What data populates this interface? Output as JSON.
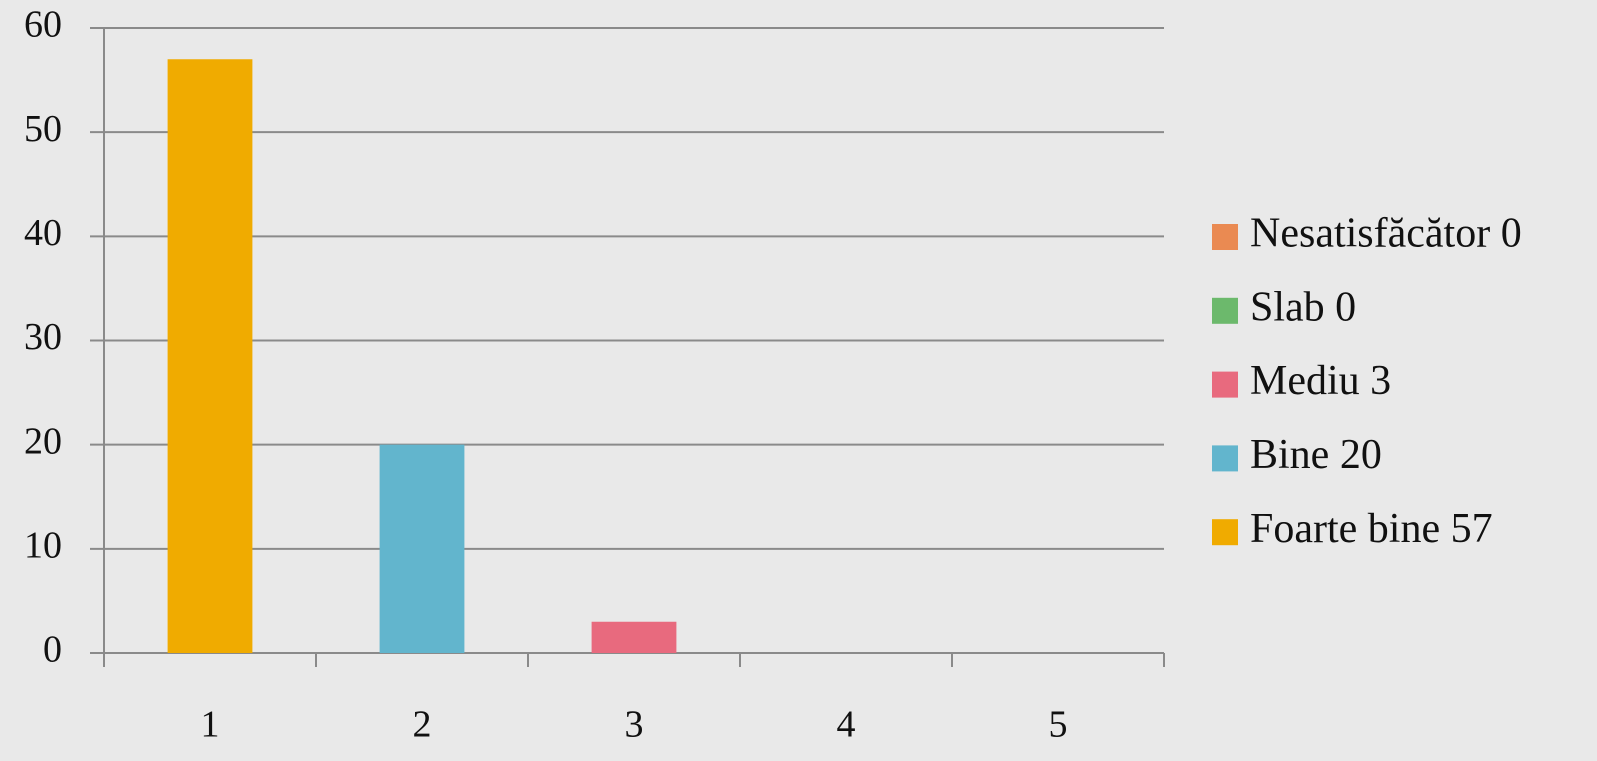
{
  "chart_data": {
    "type": "bar",
    "categories": [
      "1",
      "2",
      "3",
      "4",
      "5"
    ],
    "values": [
      57,
      20,
      3,
      0,
      0
    ],
    "colors": [
      "#f0ab00",
      "#62b5cd",
      "#e86a7e",
      "#6cb96c",
      "#ea8a52"
    ],
    "ylim": [
      0,
      60
    ],
    "yticks": [
      0,
      10,
      20,
      30,
      40,
      50,
      60
    ],
    "grid": true,
    "legend_position": "right",
    "legend": [
      {
        "name": "Nesatisfăcător 0",
        "color": "#ea8a52"
      },
      {
        "name": "Slab 0",
        "color": "#6cb96c"
      },
      {
        "name": "Mediu 3",
        "color": "#e86a7e"
      },
      {
        "name": "Bine 20",
        "color": "#62b5cd"
      },
      {
        "name": "Foarte bine 57",
        "color": "#f0ab00"
      }
    ]
  }
}
